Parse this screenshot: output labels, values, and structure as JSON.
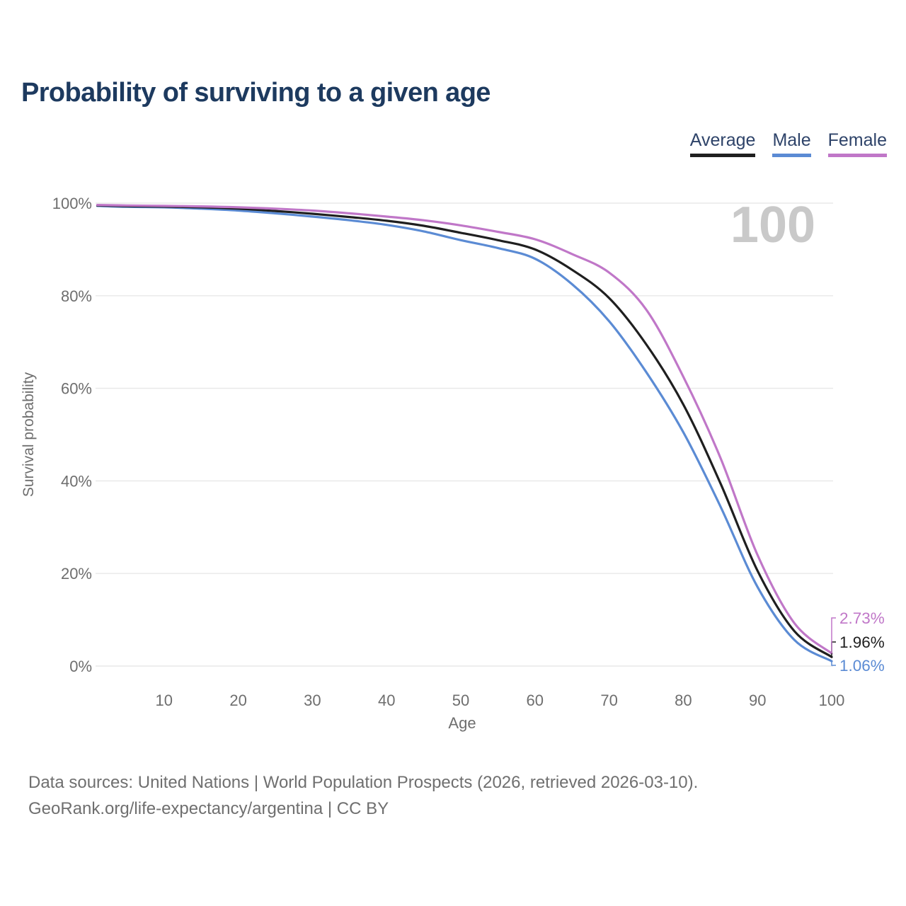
{
  "title": "Probability of surviving to a given age",
  "legend": {
    "items": [
      {
        "id": "average",
        "label": "Average",
        "color": "#1f1f1f"
      },
      {
        "id": "male",
        "label": "Male",
        "color": "#5b8bd4"
      },
      {
        "id": "female",
        "label": "Female",
        "color": "#c077c8"
      }
    ]
  },
  "watermark": "100",
  "footer": {
    "line1": "Data sources: United Nations | World Population Prospects (2026, retrieved 2026-03-10).",
    "line2": "GeoRank.org/life-expectancy/argentina | CC BY"
  },
  "chart_data": {
    "type": "line",
    "title": "Probability of surviving to a given age",
    "xlabel": "Age",
    "ylabel": "Survival probability",
    "xlim": [
      0,
      100
    ],
    "ylim": [
      0,
      100
    ],
    "grid": "horizontal",
    "x_ticks": [
      10,
      20,
      30,
      40,
      50,
      60,
      70,
      80,
      90,
      100
    ],
    "y_ticks": [
      0,
      20,
      40,
      60,
      80,
      100
    ],
    "y_tick_suffix": "%",
    "legend_position": "top-right",
    "x": [
      1,
      5,
      10,
      15,
      20,
      25,
      30,
      35,
      40,
      45,
      50,
      55,
      60,
      65,
      70,
      75,
      80,
      85,
      90,
      95,
      100
    ],
    "series": [
      {
        "name": "Average",
        "color": "#1f1f1f",
        "end_label": "1.96%",
        "values": [
          99.5,
          99.35,
          99.25,
          99.1,
          98.8,
          98.3,
          97.7,
          97.0,
          96.2,
          95.1,
          93.6,
          92.0,
          90.0,
          85.6,
          79.5,
          69.5,
          56.5,
          39.5,
          20.6,
          7.5,
          1.96
        ]
      },
      {
        "name": "Male",
        "color": "#5b8bd4",
        "end_label": "1.06%",
        "values": [
          99.4,
          99.2,
          99.1,
          98.8,
          98.4,
          97.8,
          97.1,
          96.3,
          95.3,
          93.9,
          92.0,
          90.3,
          88.0,
          82.5,
          74.5,
          63.5,
          50.5,
          34.5,
          17.1,
          5.6,
          1.06
        ]
      },
      {
        "name": "Female",
        "color": "#c077c8",
        "end_label": "2.73%",
        "values": [
          99.6,
          99.5,
          99.4,
          99.3,
          99.1,
          98.8,
          98.4,
          97.8,
          97.1,
          96.3,
          95.2,
          93.8,
          92.2,
          89.0,
          85.0,
          77.0,
          62.5,
          45.0,
          24.0,
          9.2,
          2.73
        ]
      }
    ],
    "annotations": {
      "watermark": "100"
    },
    "colors": {
      "grid": "#e8e8e8",
      "tick": "#6e6e6e",
      "watermark": "#c9c9c9"
    }
  }
}
